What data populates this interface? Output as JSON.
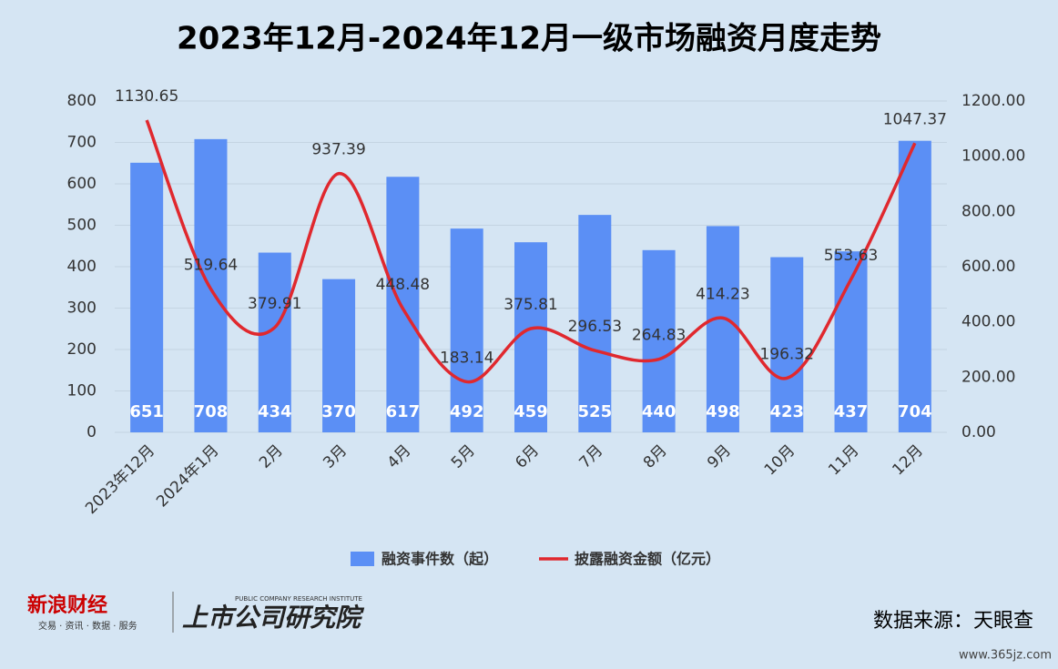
{
  "chart_data": {
    "type": "bar_line",
    "title": "2023年12月-2024年12月一级市场融资月度走势",
    "categories": [
      "2023年12月",
      "2024年1月",
      "2月",
      "3月",
      "4月",
      "5月",
      "6月",
      "7月",
      "8月",
      "9月",
      "10月",
      "11月",
      "12月"
    ],
    "series": [
      {
        "name": "融资事件数（起）",
        "color": "#5b8ff5",
        "kind": "bar",
        "axis": "y",
        "values": [
          651,
          708,
          434,
          370,
          617,
          492,
          459,
          525,
          440,
          498,
          423,
          437,
          704
        ]
      },
      {
        "name": "披露融资金额（亿元）",
        "color": "#e0282e",
        "kind": "line",
        "axis": "y2",
        "values": [
          1130.65,
          519.64,
          379.91,
          937.39,
          448.48,
          183.14,
          375.81,
          296.53,
          264.83,
          414.23,
          196.32,
          553.63,
          1047.37
        ]
      }
    ],
    "ylim": [
      0,
      800
    ],
    "yticks": [
      0,
      100,
      200,
      300,
      400,
      500,
      600,
      700,
      800
    ],
    "y2lim": [
      0,
      1200
    ],
    "y2ticks": [
      {
        "value": 0,
        "label": "0.00"
      },
      {
        "value": 200,
        "label": "200.00"
      },
      {
        "value": 400,
        "label": "400.00"
      },
      {
        "value": 600,
        "label": "600.00"
      },
      {
        "value": 800,
        "label": "800.00"
      },
      {
        "value": 1000,
        "label": "1000.00"
      },
      {
        "value": 1200,
        "label": "1200.00"
      }
    ],
    "grid": true,
    "legend": "bottom"
  },
  "footer": {
    "brand": "新浪财经",
    "brand_tagline": "交易 · 资讯 · 数据 · 服务",
    "institute": "上市公司研究院",
    "institute_en": "PUBLIC COMPANY RESEARCH INSTITUTE",
    "source": "数据来源：天眼查",
    "watermark": "www.365jz.com"
  }
}
